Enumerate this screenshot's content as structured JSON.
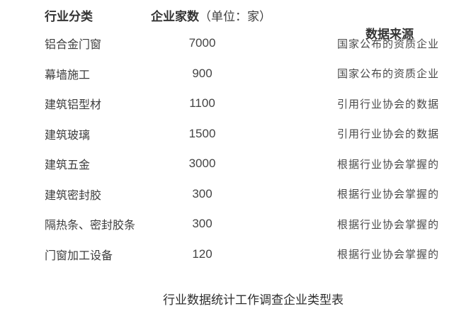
{
  "colors": {
    "background": "#ffffff",
    "heading_text": "#333333",
    "body_text": "#3d3d3d",
    "number_text": "#444444",
    "source_text": "#4a4a4a",
    "caption_text": "#2e2e2e"
  },
  "table": {
    "header": {
      "industry": "行业分类",
      "count": "企业家数",
      "count_unit": "（单位：家）",
      "source": "数据来源"
    },
    "rows": [
      {
        "industry": "铝合金门窗",
        "count": "7000",
        "source": "国家公布的资质企业"
      },
      {
        "industry": "幕墙施工",
        "count": "900",
        "source": "国家公布的资质企业"
      },
      {
        "industry": "建筑铝型材",
        "count": "1100",
        "source": "引用行业协会的数据"
      },
      {
        "industry": "建筑玻璃",
        "count": "1500",
        "source": "引用行业协会的数据"
      },
      {
        "industry": "建筑五金",
        "count": "3000",
        "source": "根据行业协会掌握的"
      },
      {
        "industry": "建筑密封胶",
        "count": "300",
        "source": "根据行业协会掌握的"
      },
      {
        "industry": "隔热条、密封胶条",
        "count": "300",
        "source": "根据行业协会掌握的"
      },
      {
        "industry": "门窗加工设备",
        "count": "120",
        "source": "根据行业协会掌握的"
      }
    ]
  },
  "caption": "行业数据统计工作调查企业类型表",
  "chart_data": {
    "type": "table",
    "title": "行业数据统计工作调查企业类型表",
    "columns": [
      "行业分类",
      "企业家数（单位：家）",
      "数据来源"
    ],
    "categories": [
      "铝合金门窗",
      "幕墙施工",
      "建筑铝型材",
      "建筑玻璃",
      "建筑五金",
      "建筑密封胶",
      "隔热条、密封胶条",
      "门窗加工设备"
    ],
    "values": [
      7000,
      900,
      1100,
      1500,
      3000,
      300,
      300,
      120
    ],
    "sources": [
      "国家公布的资质企业",
      "国家公布的资质企业",
      "引用行业协会的数据",
      "引用行业协会的数据",
      "根据行业协会掌握的",
      "根据行业协会掌握的",
      "根据行业协会掌握的",
      "根据行业协会掌握的"
    ]
  }
}
